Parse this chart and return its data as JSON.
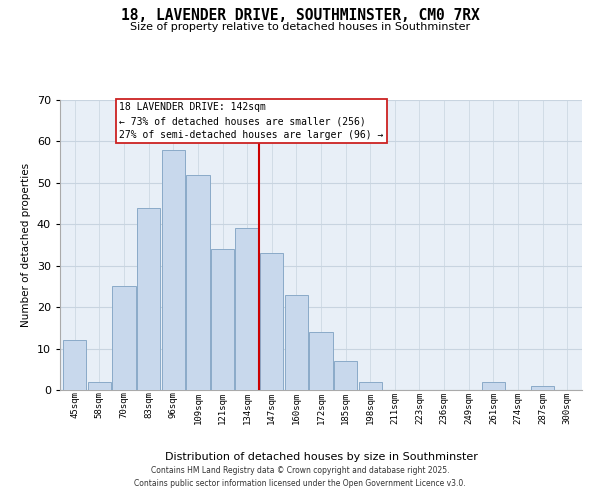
{
  "title": "18, LAVENDER DRIVE, SOUTHMINSTER, CM0 7RX",
  "subtitle": "Size of property relative to detached houses in Southminster",
  "xlabel": "Distribution of detached houses by size in Southminster",
  "ylabel": "Number of detached properties",
  "bin_labels": [
    "45sqm",
    "58sqm",
    "70sqm",
    "83sqm",
    "96sqm",
    "109sqm",
    "121sqm",
    "134sqm",
    "147sqm",
    "160sqm",
    "172sqm",
    "185sqm",
    "198sqm",
    "211sqm",
    "223sqm",
    "236sqm",
    "249sqm",
    "261sqm",
    "274sqm",
    "287sqm",
    "300sqm"
  ],
  "bar_values": [
    12,
    2,
    25,
    44,
    58,
    52,
    34,
    39,
    33,
    23,
    14,
    7,
    2,
    0,
    0,
    0,
    0,
    2,
    0,
    1,
    0
  ],
  "bar_color": "#c8d8ec",
  "bar_edge_color": "#8aaac8",
  "vline_color": "#cc0000",
  "ylim": [
    0,
    70
  ],
  "yticks": [
    0,
    10,
    20,
    30,
    40,
    50,
    60,
    70
  ],
  "annotation_title": "18 LAVENDER DRIVE: 142sqm",
  "annotation_line1": "← 73% of detached houses are smaller (256)",
  "annotation_line2": "27% of semi-detached houses are larger (96) →",
  "footnote1": "Contains HM Land Registry data © Crown copyright and database right 2025.",
  "footnote2": "Contains public sector information licensed under the Open Government Licence v3.0.",
  "background_color": "#ffffff",
  "plot_bg_color": "#e8eff7",
  "grid_color": "#c8d4e0"
}
